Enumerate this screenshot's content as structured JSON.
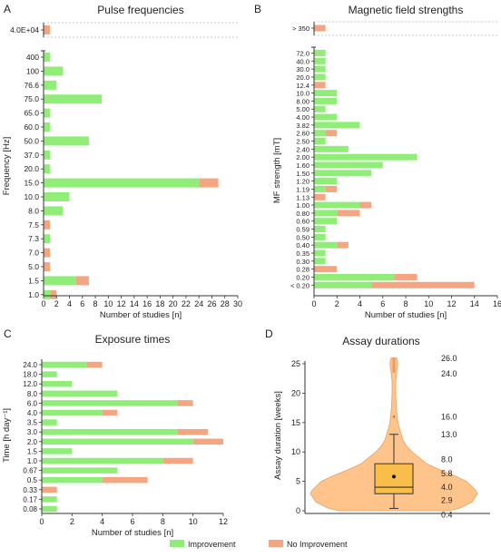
{
  "colors": {
    "improvement": "#90EE78",
    "no_improvement": "#F4A582",
    "violin": "#FFC48C",
    "box": "#F9BE4A"
  },
  "legend": [
    {
      "label": "Improvement",
      "color": "#90EE78"
    },
    {
      "label": "No Improvement",
      "color": "#F4A582"
    }
  ],
  "chart_data": [
    {
      "panel": "A",
      "type": "bar",
      "orientation": "horizontal",
      "stacked": true,
      "title": "Pulse frequencies",
      "xlabel": "Number of studies [n]",
      "ylabel": "Frequency [Hz]",
      "xlim": [
        0,
        30
      ],
      "xticks": [
        0,
        2,
        4,
        6,
        8,
        10,
        12,
        14,
        16,
        18,
        20,
        22,
        24,
        26,
        28,
        30
      ],
      "broken_axis_categories": [
        "4.0E+04"
      ],
      "categories": [
        "4.0E+04",
        "400",
        "100",
        "76.6",
        "75.0",
        "65.0",
        "60.0",
        "50.0",
        "37.0",
        "20.0",
        "15.0",
        "10.0",
        "8.0",
        "7.5",
        "7.3",
        "7.0",
        "5.0",
        "1.5",
        "1.0"
      ],
      "series": [
        {
          "name": "Improvement",
          "values": [
            0,
            1,
            3,
            2,
            9,
            1,
            1,
            7,
            1,
            1,
            24,
            4,
            3,
            0,
            1,
            0,
            0,
            5,
            1
          ]
        },
        {
          "name": "No Improvement",
          "values": [
            1,
            0,
            0,
            0,
            0,
            0,
            0,
            0,
            0,
            0,
            3,
            0,
            0,
            1,
            0,
            1,
            1,
            2,
            1
          ]
        }
      ]
    },
    {
      "panel": "B",
      "type": "bar",
      "orientation": "horizontal",
      "stacked": true,
      "title": "Magnetic field strengths",
      "xlabel": "Number of studies [n]",
      "ylabel": "MF strength [mT]",
      "xlim": [
        0,
        16
      ],
      "xticks": [
        0,
        2,
        4,
        6,
        8,
        10,
        12,
        14,
        16
      ],
      "broken_axis_categories": [
        "> 350"
      ],
      "categories": [
        "> 350",
        "72.0",
        "40.0",
        "30.0",
        "20.0",
        "12.4",
        "10.0",
        "8.00",
        "5.00",
        "4.00",
        "3.82",
        "2.60",
        "2.50",
        "2.40",
        "2.00",
        "1.60",
        "1.50",
        "1.20",
        "1.19",
        "1.13",
        "1.00",
        "0.80",
        "0.60",
        "0.59",
        "0.50",
        "0.40",
        "0.35",
        "0.30",
        "0.28",
        "0.20",
        "< 0.20"
      ],
      "series": [
        {
          "name": "Improvement",
          "values": [
            0,
            1,
            1,
            1,
            1,
            0,
            2,
            2,
            1,
            2,
            4,
            1,
            1,
            3,
            9,
            6,
            5,
            2,
            1,
            0,
            4,
            2,
            2,
            1,
            1,
            2,
            1,
            1,
            0,
            7,
            5
          ]
        },
        {
          "name": "No Improvement",
          "values": [
            1,
            0,
            0,
            0,
            0,
            1,
            0,
            0,
            0,
            0,
            0,
            1,
            0,
            0,
            0,
            0,
            0,
            0,
            1,
            1,
            1,
            2,
            0,
            0,
            0,
            1,
            0,
            0,
            2,
            2,
            9
          ]
        }
      ]
    },
    {
      "panel": "C",
      "type": "bar",
      "orientation": "horizontal",
      "stacked": true,
      "title": "Exposure times",
      "xlabel": "Number of studies [n]",
      "ylabel": "Time [h day⁻¹]",
      "xlim": [
        0,
        12
      ],
      "xticks": [
        0,
        2,
        4,
        6,
        8,
        10,
        12
      ],
      "categories": [
        "24.0",
        "18.0",
        "12.0",
        "8.0",
        "6.0",
        "4.0",
        "3.5",
        "3.0",
        "2.0",
        "1.5",
        "1.0",
        "0.67",
        "0.5",
        "0.33",
        "0.17",
        "0.08"
      ],
      "series": [
        {
          "name": "Improvement",
          "values": [
            3,
            1,
            2,
            5,
            9,
            4,
            1,
            9,
            10,
            2,
            8,
            5,
            4,
            0,
            1,
            1
          ]
        },
        {
          "name": "No Improvement",
          "values": [
            1,
            0,
            0,
            0,
            1,
            1,
            0,
            2,
            2,
            0,
            2,
            0,
            3,
            1,
            0,
            0
          ]
        }
      ]
    },
    {
      "panel": "D",
      "type": "violin",
      "title": "Assay durations",
      "ylabel": "Assay duration [weeks]",
      "ylim": [
        0,
        26
      ],
      "yticks": [
        0,
        5,
        10,
        15,
        20,
        25
      ],
      "stats": {
        "min": 0.4,
        "q1": 2.9,
        "median": 4.0,
        "mean": 5.8,
        "q3": 8.0,
        "whisker_high": 13.0,
        "outlier": 16.0,
        "max": 26.0
      },
      "labels": [
        "26.0",
        "24.0",
        "16.0",
        "13.0",
        "8.0",
        "5.8",
        "4.0",
        "2.9",
        "0.4"
      ]
    }
  ],
  "panels": [
    {
      "letter": "A"
    },
    {
      "letter": "B"
    },
    {
      "letter": "C"
    },
    {
      "letter": "D"
    }
  ]
}
